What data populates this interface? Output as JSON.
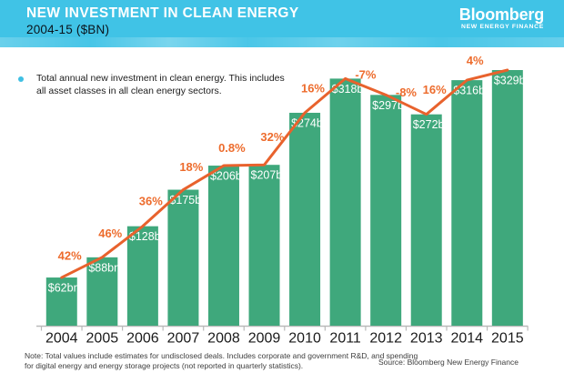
{
  "header": {
    "title": "NEW INVESTMENT IN CLEAN ENERGY",
    "subtitle": "2004-15 ($BN)",
    "logo": {
      "name": "Bloomberg",
      "tagline": "NEW ENERGY FINANCE"
    }
  },
  "bullet": {
    "text": "Total annual new investment in clean energy. This includes all asset classes in all clean energy sectors."
  },
  "chart_data": {
    "type": "bar",
    "title": "NEW INVESTMENT IN CLEAN ENERGY",
    "subtitle": "2004-15 ($BN)",
    "xlabel": "",
    "ylabel": "",
    "ylim": [
      0,
      340
    ],
    "grid": false,
    "legend": "none",
    "categories": [
      "2004",
      "2005",
      "2006",
      "2007",
      "2008",
      "2009",
      "2010",
      "2011",
      "2012",
      "2013",
      "2014",
      "2015"
    ],
    "series": [
      {
        "name": "Total annual new investment in clean energy ($bn)",
        "type": "bar",
        "values": [
          62,
          88,
          128,
          175,
          206,
          207,
          274,
          318,
          297,
          272,
          316,
          329
        ],
        "value_labels": [
          "$62bn",
          "$88bn",
          "$128bn",
          "$175bn",
          "$206bn",
          "$207bn",
          "$274bn",
          "$318bn",
          "$297bn",
          "$272bn",
          "$316bn",
          "$329bn"
        ],
        "value_label_position": "inside-top"
      },
      {
        "name": "Year-on-year change (%)",
        "type": "line",
        "traces_bar_tops": true,
        "segment_labels": [
          "42%",
          "46%",
          "36%",
          "18%",
          "0.8%",
          "32%",
          "16%",
          "-7%",
          "-8%",
          "16%",
          "4%"
        ]
      }
    ],
    "colors": {
      "bar": "#3fa87c",
      "line": "#e8622d",
      "pct_label": "#ed6c2d",
      "value_label": "#ffffff",
      "axis": "#b9b9b9",
      "tick_label": "#1b1b1b"
    }
  },
  "footer": {
    "note": "Note: Total values include estimates for undisclosed deals. Includes corporate and government R&D, and spending for digital energy and energy storage projects (not reported in quarterly statistics).",
    "source": "Source: Bloomberg New Energy Finance"
  }
}
